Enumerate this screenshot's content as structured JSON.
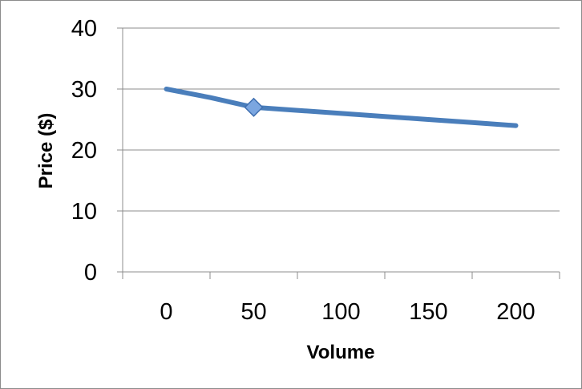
{
  "chart_data": {
    "type": "line",
    "title": "",
    "xlabel": "Volume",
    "ylabel": "Price ($)",
    "x_ticks": [
      "0",
      "50",
      "100",
      "150",
      "200"
    ],
    "y_ticks": [
      "0",
      "10",
      "20",
      "30",
      "40"
    ],
    "xlim": [
      -25,
      225
    ],
    "ylim": [
      0,
      40
    ],
    "grid": "horizontal",
    "legend": "none",
    "series": [
      {
        "color": "#4a7ebb",
        "x": [
          0,
          25,
          50,
          75,
          100,
          125,
          150,
          175,
          200
        ],
        "y": [
          30,
          28.6,
          27.0,
          26.5,
          26.0,
          25.5,
          25.0,
          24.5,
          24.0
        ]
      }
    ],
    "highlight": {
      "x": 50,
      "y": 27.0,
      "marker": "diamond",
      "color": "#7ba6e0"
    }
  }
}
